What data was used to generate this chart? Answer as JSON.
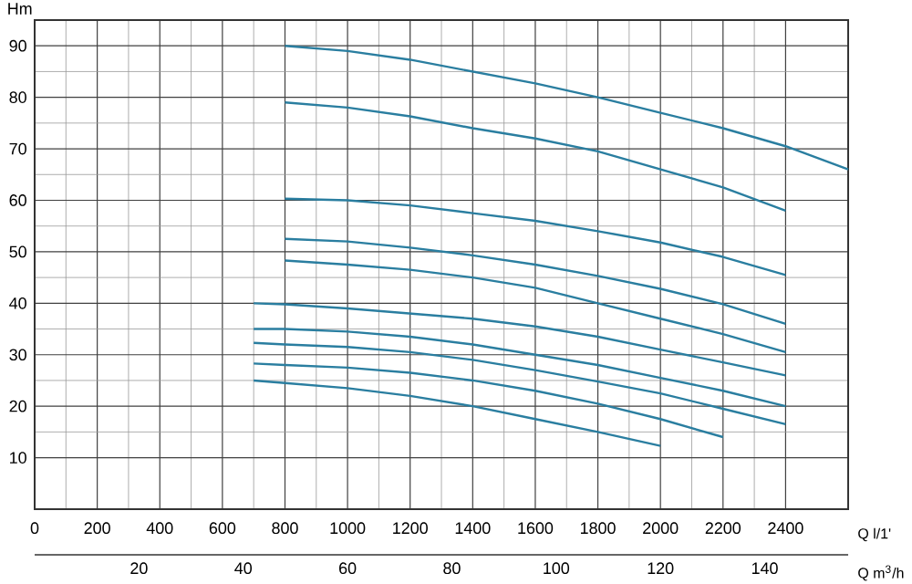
{
  "chart_data": {
    "type": "line",
    "xlabel": "Q l/1'",
    "ylabel": "Hm",
    "x2label": "Q m$^{3}$/h",
    "xlim": [
      0,
      2600
    ],
    "ylim": [
      0,
      95
    ],
    "xticks": [
      0,
      200,
      400,
      600,
      800,
      1000,
      1200,
      1400,
      1600,
      1800,
      2000,
      2200,
      2400
    ],
    "yticks": [
      10,
      20,
      30,
      40,
      50,
      60,
      70,
      80,
      90
    ],
    "x2lim": [
      0,
      156
    ],
    "x2ticks": [
      20,
      40,
      60,
      80,
      100,
      120,
      140
    ],
    "grid": true,
    "marker": "none",
    "line_style": "solid",
    "series": [
      {
        "color": "#2a7ea0",
        "x": [
          800,
          1000,
          1200,
          1400,
          1600,
          1800,
          2000,
          2200,
          2400,
          2600
        ],
        "values": [
          90,
          89,
          87.3,
          85,
          82.7,
          80,
          77,
          74,
          70.5,
          66
        ]
      },
      {
        "color": "#2a7ea0",
        "x": [
          800,
          1000,
          1200,
          1400,
          1600,
          1800,
          2000,
          2200,
          2400
        ],
        "values": [
          79,
          78,
          76.3,
          74,
          72,
          69.5,
          66,
          62.5,
          58
        ]
      },
      {
        "color": "#2a7ea0",
        "x": [
          800,
          1000,
          1200,
          1400,
          1600,
          1800,
          2000,
          2200,
          2400
        ],
        "values": [
          60.3,
          60,
          59,
          57.5,
          56,
          54,
          51.8,
          49,
          45.5
        ]
      },
      {
        "color": "#2a7ea0",
        "x": [
          800,
          1000,
          1200,
          1400,
          1600,
          1800,
          2000,
          2200,
          2400
        ],
        "values": [
          52.5,
          52,
          50.8,
          49.3,
          47.5,
          45.3,
          42.8,
          39.8,
          36
        ]
      },
      {
        "color": "#2a7ea0",
        "x": [
          800,
          1000,
          1200,
          1400,
          1600,
          1800,
          2000,
          2200,
          2400
        ],
        "values": [
          48.3,
          47.5,
          46.5,
          45,
          43,
          40,
          37,
          34,
          30.5
        ]
      },
      {
        "color": "#2a7ea0",
        "x": [
          700,
          800,
          1000,
          1200,
          1400,
          1600,
          1800,
          2000,
          2200,
          2400
        ],
        "values": [
          40,
          39.8,
          39,
          38,
          37,
          35.5,
          33.5,
          31,
          28.5,
          26
        ]
      },
      {
        "color": "#2a7ea0",
        "x": [
          700,
          800,
          1000,
          1200,
          1400,
          1600,
          1800,
          2000,
          2200,
          2400
        ],
        "values": [
          35,
          35,
          34.5,
          33.5,
          32,
          30,
          28,
          25.5,
          23,
          20
        ]
      },
      {
        "color": "#2a7ea0",
        "x": [
          700,
          800,
          1000,
          1200,
          1400,
          1600,
          1800,
          2000,
          2200,
          2400
        ],
        "values": [
          32.3,
          32,
          31.5,
          30.5,
          29,
          27,
          24.8,
          22.5,
          19.5,
          16.5
        ]
      },
      {
        "color": "#2a7ea0",
        "x": [
          700,
          800,
          1000,
          1200,
          1400,
          1600,
          1800,
          2000,
          2200
        ],
        "values": [
          28.3,
          28,
          27.5,
          26.5,
          25,
          23,
          20.5,
          17.5,
          14
        ]
      },
      {
        "color": "#2a7ea0",
        "x": [
          700,
          800,
          1000,
          1200,
          1400,
          1600,
          1800,
          2000
        ],
        "values": [
          25,
          24.5,
          23.5,
          22,
          20,
          17.5,
          15,
          12.3
        ]
      }
    ]
  }
}
